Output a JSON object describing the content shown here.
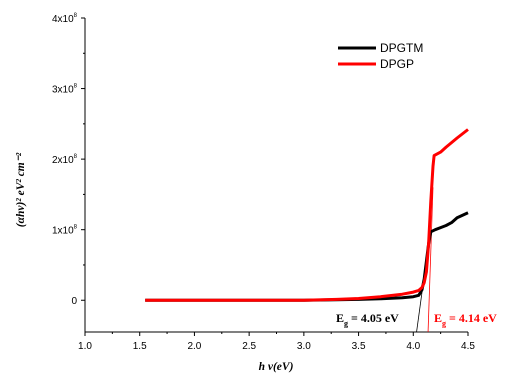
{
  "chart_data": {
    "type": "line",
    "xlabel": "h ν(eV)",
    "ylabel": "(αhν)² eV² cm⁻²",
    "xlim": [
      1.0,
      4.5
    ],
    "ylim": [
      -45000000.0,
      400000000.0
    ],
    "x_ticks": [
      {
        "value": 1.0,
        "label": "1.0"
      },
      {
        "value": 1.5,
        "label": "1.5"
      },
      {
        "value": 2.0,
        "label": "2.0"
      },
      {
        "value": 2.5,
        "label": "2.5"
      },
      {
        "value": 3.0,
        "label": "3.0"
      },
      {
        "value": 3.5,
        "label": "3.5"
      },
      {
        "value": 4.0,
        "label": "4.0"
      },
      {
        "value": 4.5,
        "label": "4.5"
      }
    ],
    "y_ticks": [
      {
        "value": 0,
        "mant": "0",
        "exp": ""
      },
      {
        "value": 100000000.0,
        "mant": "1x10",
        "exp": "8"
      },
      {
        "value": 200000000.0,
        "mant": "2x10",
        "exp": "8"
      },
      {
        "value": 300000000.0,
        "mant": "3x10",
        "exp": "8"
      },
      {
        "value": 400000000.0,
        "mant": "4x10",
        "exp": "8"
      }
    ],
    "grid": false,
    "legend_position": "top-right",
    "series": [
      {
        "name": "DPGTM",
        "color": "#000000",
        "points": [
          [
            1.55,
            0
          ],
          [
            2.0,
            0
          ],
          [
            2.5,
            0
          ],
          [
            3.0,
            0
          ],
          [
            3.3,
            600000.0
          ],
          [
            3.5,
            1200000.0
          ],
          [
            3.7,
            2000000.0
          ],
          [
            3.9,
            3500000.0
          ],
          [
            4.0,
            5000000.0
          ],
          [
            4.05,
            7000000.0
          ],
          [
            4.08,
            15000000.0
          ],
          [
            4.1,
            30000000.0
          ],
          [
            4.12,
            55000000.0
          ],
          [
            4.14,
            80000000.0
          ],
          [
            4.16,
            97000000.0
          ],
          [
            4.2,
            100000000.0
          ],
          [
            4.25,
            103000000.0
          ],
          [
            4.3,
            106000000.0
          ],
          [
            4.35,
            110000000.0
          ],
          [
            4.4,
            117000000.0
          ],
          [
            4.5,
            124000000.0
          ]
        ]
      },
      {
        "name": "DPGP",
        "color": "#ff0000",
        "points": [
          [
            1.55,
            0
          ],
          [
            2.0,
            0
          ],
          [
            2.5,
            0
          ],
          [
            3.0,
            0
          ],
          [
            3.3,
            1200000.0
          ],
          [
            3.5,
            2500000.0
          ],
          [
            3.7,
            5000000.0
          ],
          [
            3.9,
            8500000.0
          ],
          [
            4.0,
            11500000.0
          ],
          [
            4.05,
            14000000.0
          ],
          [
            4.08,
            18000000.0
          ],
          [
            4.1,
            25000000.0
          ],
          [
            4.12,
            40000000.0
          ],
          [
            4.14,
            80000000.0
          ],
          [
            4.16,
            140000000.0
          ],
          [
            4.18,
            190000000.0
          ],
          [
            4.19,
            205000000.0
          ],
          [
            4.25,
            210000000.0
          ],
          [
            4.3,
            217000000.0
          ],
          [
            4.4,
            230000000.0
          ],
          [
            4.5,
            242000000.0
          ]
        ]
      }
    ],
    "annotations": [
      {
        "text": "E",
        "sub": "g",
        "rest": " = 4.05 eV",
        "color": "#000000"
      },
      {
        "text": "E",
        "sub": "g",
        "rest": " = 4.14 eV",
        "color": "#ff0000"
      }
    ],
    "tangent_lines": [
      {
        "color": "#000000",
        "from": [
          4.14,
          80000000.0
        ],
        "to": [
          4.03,
          -45000000.0
        ]
      },
      {
        "color": "#ff0000",
        "from": [
          4.18,
          160000000.0
        ],
        "to": [
          4.135,
          -45000000.0
        ]
      }
    ]
  }
}
